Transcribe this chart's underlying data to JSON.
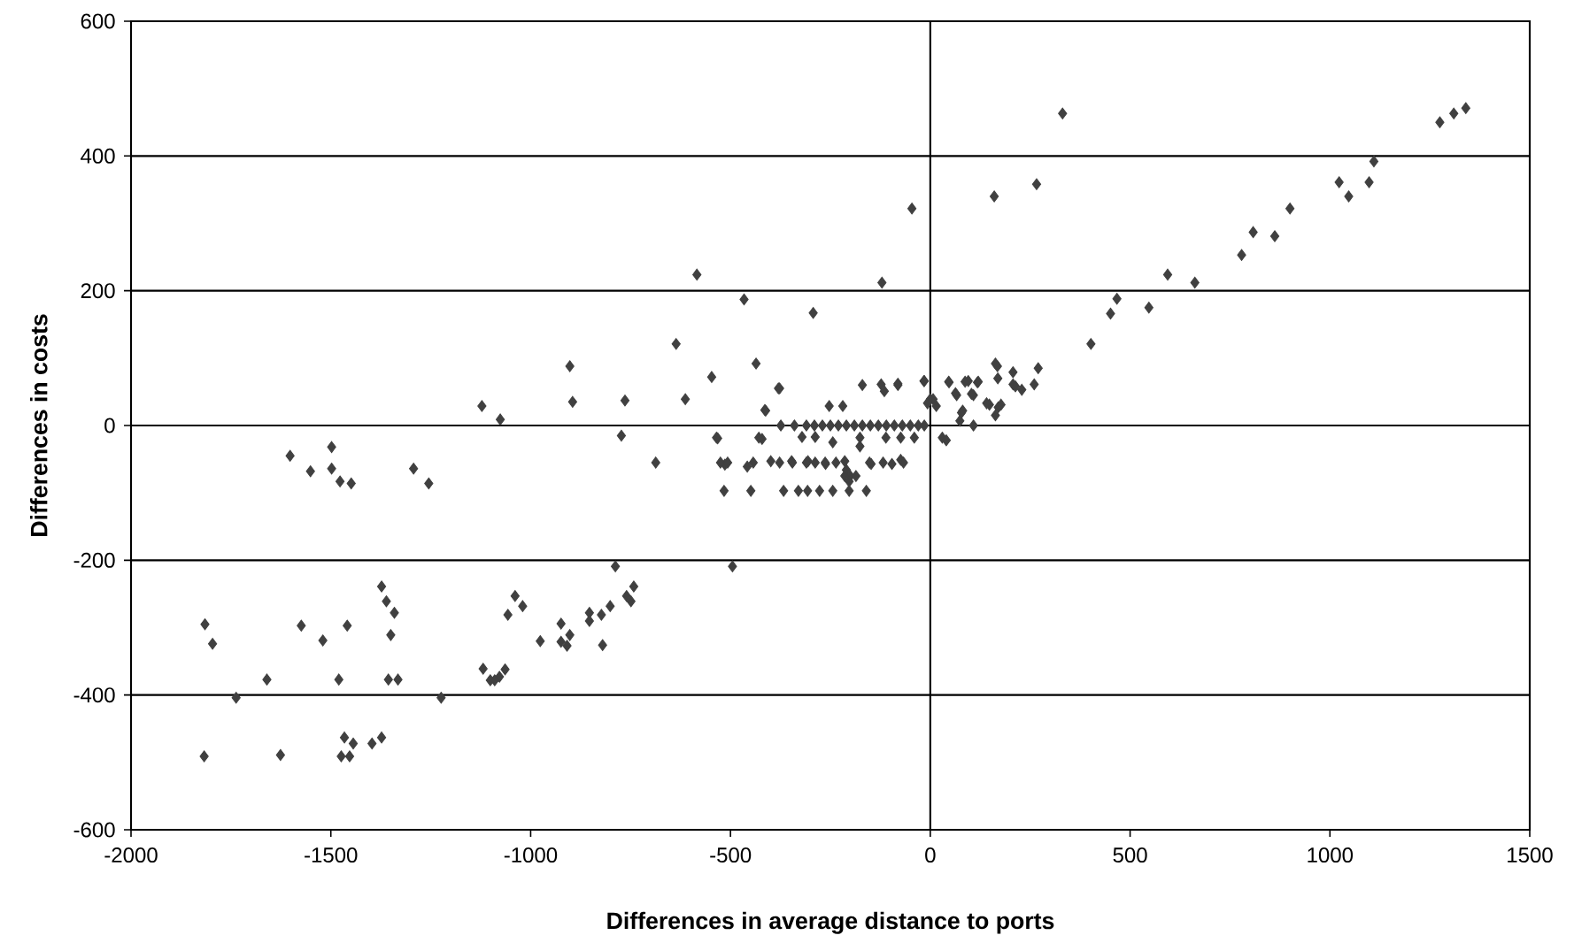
{
  "chart_data": {
    "type": "scatter",
    "xlabel": "Differences in average distance to ports",
    "ylabel": "Differences in costs",
    "xlim": [
      -2000,
      1500
    ],
    "xticks": [
      -2000,
      -1500,
      -1000,
      -500,
      0,
      500,
      1000,
      1500
    ],
    "ylim": [
      -600,
      600
    ],
    "yticks": [
      -600,
      -400,
      -200,
      0,
      200,
      400,
      600
    ],
    "grid": "y",
    "marker": "diamond",
    "ref_lines": [
      {
        "axis": "x",
        "value": 0
      }
    ],
    "series": [
      {
        "color": "#404040",
        "x": [
          1340,
          1310,
          1275,
          1110,
          1098,
          1023,
          1047,
          900,
          862,
          808,
          779,
          662,
          594,
          547,
          467,
          451,
          402,
          331,
          266,
          160,
          -46,
          163,
          168,
          270,
          207,
          260,
          118,
          95,
          47,
          -15,
          -81,
          66,
          108,
          148,
          170,
          78,
          15,
          0,
          163,
          229,
          -7,
          7,
          -16,
          46,
          87,
          120,
          63,
          103,
          81,
          74,
          108,
          207,
          169,
          213,
          141,
          177,
          30,
          40,
          -170,
          -123,
          -81,
          -115,
          -253,
          -219,
          -380,
          -414,
          -436,
          -547,
          -613,
          -636,
          -466,
          -293,
          -121,
          -584,
          -374,
          -340,
          -310,
          -290,
          -270,
          -250,
          -230,
          -210,
          -190,
          -170,
          -150,
          -130,
          -110,
          -90,
          -70,
          -50,
          -30,
          -15,
          -532,
          -421,
          -321,
          -288,
          -244,
          -176,
          -176,
          -111,
          -74,
          -40,
          -514,
          -458,
          -399,
          -347,
          -306,
          -262,
          -214,
          -210,
          -148,
          -96,
          -74,
          -516,
          -449,
          -367,
          -330,
          -307,
          -277,
          -244,
          -203,
          -160,
          -525,
          -507,
          -443,
          -377,
          -345,
          -310,
          -288,
          -263,
          -236,
          -152,
          -118,
          -67,
          -214,
          -200,
          -186,
          -203,
          -535,
          -429,
          -773,
          -687,
          -902,
          -895,
          -764,
          -377,
          -412,
          -1076,
          -788,
          -495,
          -742,
          -760,
          -749,
          -801,
          -823,
          -853,
          -853,
          -820,
          -924,
          -902,
          -924,
          -909,
          -976,
          -1039,
          -1020,
          -1057,
          -1064,
          -1078,
          -1122,
          -1602,
          -1551,
          -1498,
          -1498,
          -1477,
          -1449,
          -1293,
          -1255,
          -1373,
          -1361,
          -1341,
          -1350,
          -1356,
          -1332,
          -1459,
          -1480,
          -1574,
          -1520,
          -1815,
          -1796,
          -1660,
          -1737,
          -1224,
          -1817,
          -1626,
          -1474,
          -1453,
          -1466,
          -1444,
          -1397,
          -1373,
          -1119,
          -1101,
          -1090
        ],
        "values": [
          471,
          463,
          450,
          392,
          361,
          361,
          340,
          322,
          281,
          287,
          253,
          212,
          224,
          175,
          188,
          166,
          121,
          463,
          358,
          340,
          322,
          92,
          88,
          85,
          61,
          61,
          64,
          66,
          64,
          66,
          62,
          45,
          45,
          31,
          27,
          19,
          29,
          39,
          15,
          53,
          33,
          39,
          66,
          65,
          65,
          65,
          48,
          47,
          22,
          7,
          0,
          79,
          70,
          58,
          33,
          31,
          -18,
          -22,
          60,
          61,
          60,
          51,
          29,
          29,
          55,
          23,
          92,
          72,
          39,
          121,
          187,
          167,
          212,
          224,
          0,
          0,
          0,
          0,
          0,
          0,
          0,
          0,
          0,
          0,
          0,
          0,
          0,
          0,
          0,
          0,
          0,
          0,
          -19,
          -20,
          -17,
          -17,
          -25,
          -18,
          -31,
          -18,
          -18,
          -18,
          -58,
          -61,
          -53,
          -53,
          -53,
          -57,
          -53,
          -66,
          -57,
          -57,
          -51,
          -97,
          -97,
          -97,
          -97,
          -97,
          -97,
          -97,
          -97,
          -97,
          -55,
          -55,
          -55,
          -55,
          -55,
          -55,
          -55,
          -55,
          -55,
          -55,
          -55,
          -55,
          -75,
          -75,
          -75,
          -83,
          -18,
          -18,
          -15,
          -55,
          88,
          35,
          37,
          55,
          22,
          9,
          -209,
          -209,
          -239,
          -253,
          -261,
          -268,
          -281,
          -278,
          -290,
          -326,
          -294,
          -311,
          -321,
          -327,
          -320,
          -253,
          -268,
          -281,
          -362,
          -373,
          29,
          -45,
          -68,
          -32,
          -64,
          -83,
          -86,
          -64,
          -86,
          -239,
          -261,
          -278,
          -311,
          -377,
          -377,
          -297,
          -377,
          -297,
          -319,
          -295,
          -324,
          -377,
          -404,
          -404,
          -491,
          -489,
          -491,
          -491,
          -463,
          -472,
          -472,
          -463,
          -361,
          -378,
          -378
        ]
      }
    ]
  }
}
